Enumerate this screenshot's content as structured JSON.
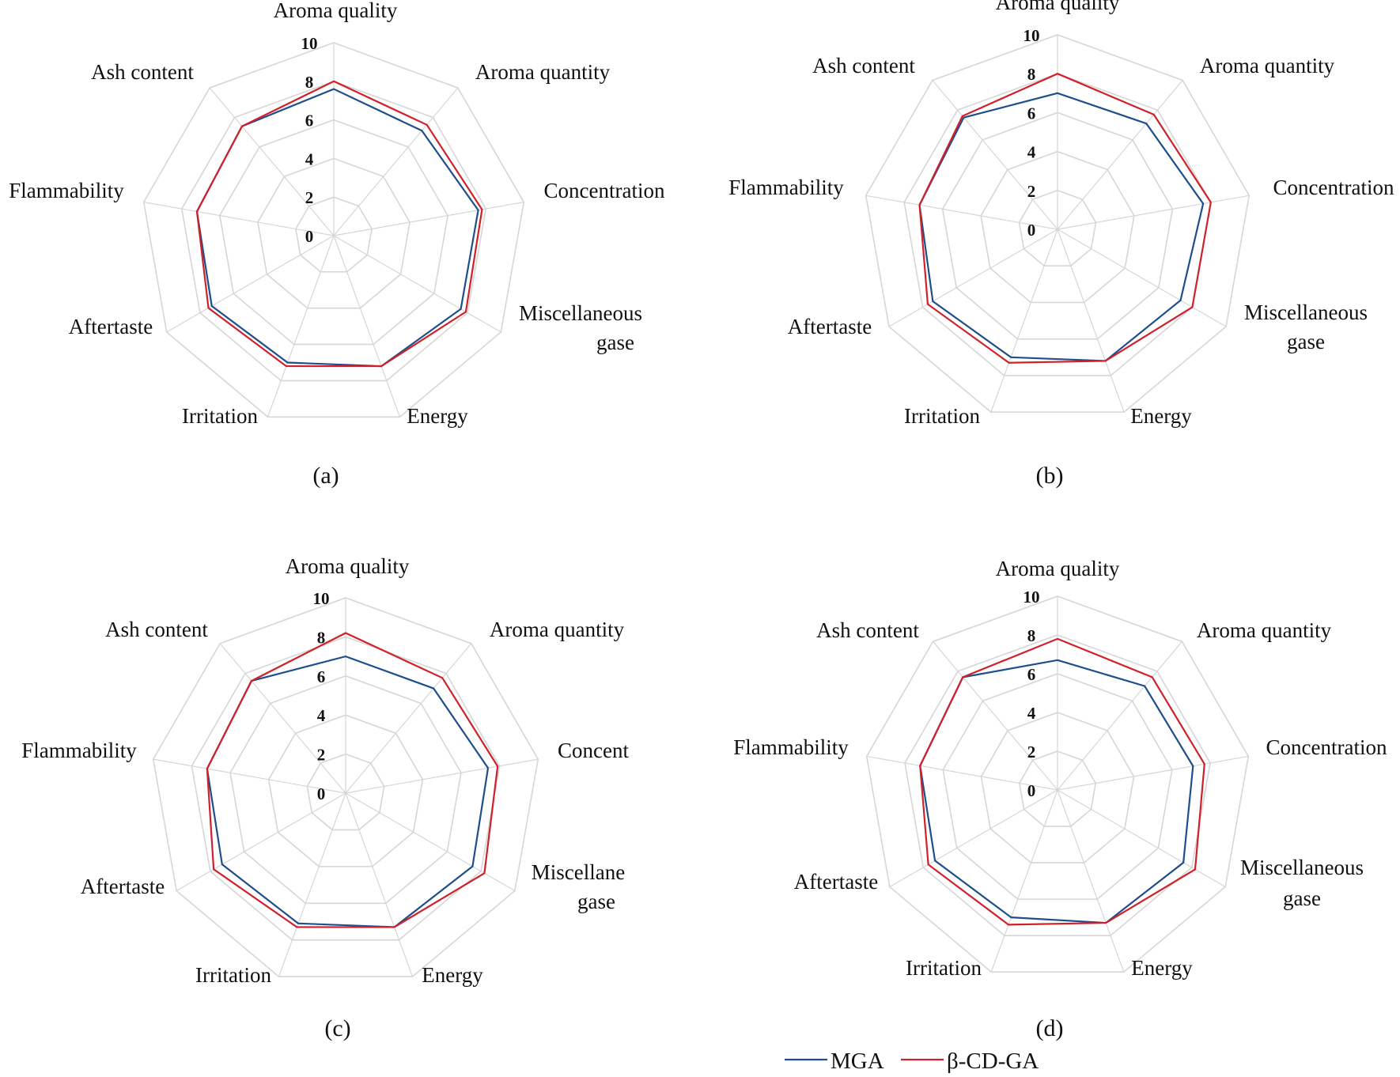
{
  "colors": {
    "MGA": "#1f4e8c",
    "beta_CD_GA": "#d0202a",
    "grid": "#d6d6d6"
  },
  "legend": {
    "items": [
      "MGA",
      "β-CD-GA"
    ]
  },
  "chart_data": [
    {
      "type": "radar",
      "panel_label": "(a)",
      "categories": [
        "Aroma quality",
        "Aroma quantity",
        "Concentration",
        "Miscellaneous gase",
        "Energy",
        "Irritation",
        "Aftertaste",
        "Flammability",
        "Ash content"
      ],
      "ticks": [
        "0",
        "2",
        "4",
        "6",
        "8",
        "10"
      ],
      "rlim": [
        0,
        10
      ],
      "series": [
        {
          "name": "MGA",
          "values": [
            7.6,
            7.1,
            7.6,
            7.6,
            7.2,
            7.0,
            7.3,
            7.2,
            7.4
          ]
        },
        {
          "name": "β-CD-GA",
          "values": [
            8.0,
            7.5,
            7.8,
            7.9,
            7.2,
            7.2,
            7.5,
            7.2,
            7.4
          ]
        }
      ]
    },
    {
      "type": "radar",
      "panel_label": "(b)",
      "categories": [
        "Aroma quality",
        "Aroma quantity",
        "Concentration",
        "Miscellaneous gase",
        "Energy",
        "Irritation",
        "Aftertaste",
        "Flammability",
        "Ash content"
      ],
      "ticks": [
        "0",
        "2",
        "4",
        "6",
        "8",
        "10"
      ],
      "rlim": [
        0,
        10
      ],
      "series": [
        {
          "name": "MGA",
          "values": [
            7.0,
            7.1,
            7.6,
            7.3,
            7.2,
            7.0,
            7.4,
            7.2,
            7.5
          ]
        },
        {
          "name": "β-CD-GA",
          "values": [
            8.0,
            7.7,
            8.0,
            8.0,
            7.2,
            7.3,
            7.7,
            7.2,
            7.6
          ]
        }
      ]
    },
    {
      "type": "radar",
      "panel_label": "(c)",
      "categories": [
        "Aroma quality",
        "Aroma quantity",
        "Concent",
        "Miscellane gase",
        "Energy",
        "Irritation",
        "Aftertaste",
        "Flammability",
        "Ash content"
      ],
      "ticks": [
        "0",
        "2",
        "4",
        "6",
        "8",
        "10"
      ],
      "rlim": [
        0,
        10
      ],
      "series": [
        {
          "name": "MGA",
          "values": [
            7.0,
            7.0,
            7.4,
            7.5,
            7.3,
            7.1,
            7.3,
            7.2,
            7.5
          ]
        },
        {
          "name": "β-CD-GA",
          "values": [
            8.2,
            7.7,
            7.9,
            8.2,
            7.3,
            7.3,
            7.8,
            7.2,
            7.5
          ]
        }
      ]
    },
    {
      "type": "radar",
      "panel_label": "(d)",
      "categories": [
        "Aroma quality",
        "Aroma quantity",
        "Concentration",
        "Miscellaneous gase",
        "Energy",
        "Irritation",
        "Aftertaste",
        "Flammability",
        "Ash content"
      ],
      "ticks": [
        "0",
        "2",
        "4",
        "6",
        "8",
        "10"
      ],
      "rlim": [
        0,
        10
      ],
      "series": [
        {
          "name": "MGA",
          "values": [
            6.7,
            7.0,
            7.1,
            7.5,
            7.3,
            7.0,
            7.3,
            7.2,
            7.6
          ]
        },
        {
          "name": "β-CD-GA",
          "values": [
            7.8,
            7.6,
            7.7,
            8.2,
            7.3,
            7.4,
            7.7,
            7.2,
            7.6
          ]
        }
      ]
    }
  ]
}
